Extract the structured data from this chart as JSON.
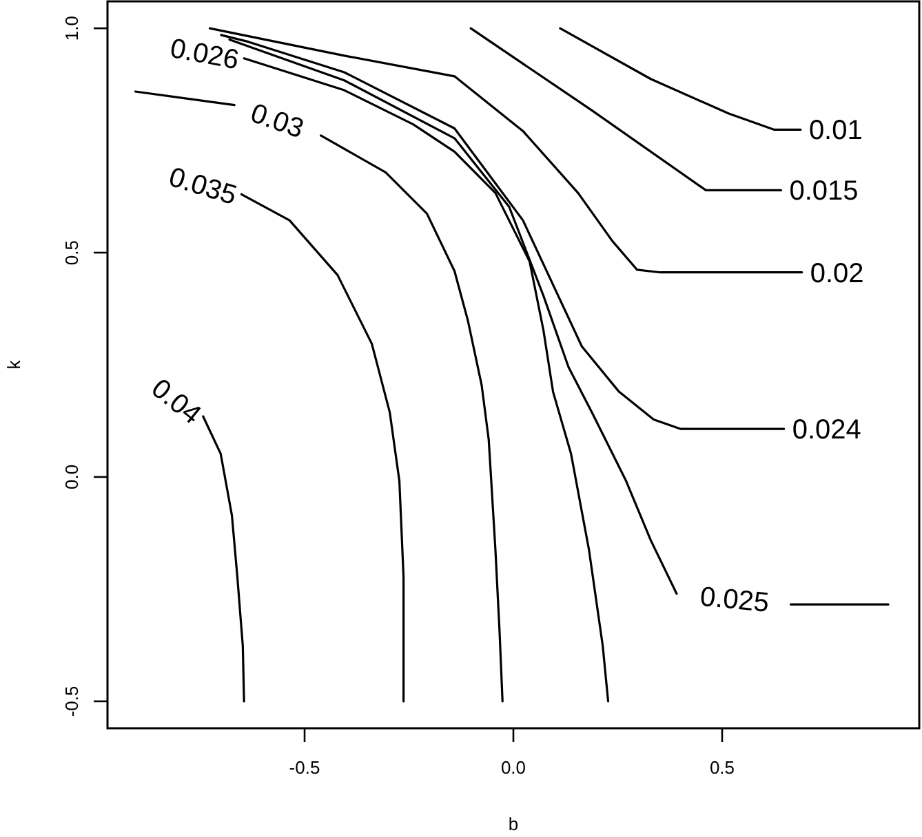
{
  "chart_data": {
    "type": "line",
    "xlabel": "b",
    "ylabel": "k",
    "xlim": [
      -0.972,
      0.972
    ],
    "ylim": [
      -0.56,
      1.06
    ],
    "xticks": [
      -0.5,
      {
        "value": 0,
        "label": "0.0"
      },
      0.5
    ],
    "yticks": [
      -0.5,
      {
        "value": 0,
        "label": "0.0"
      },
      0.5,
      {
        "value": 1,
        "label": "1.0"
      }
    ],
    "series": [
      {
        "name": "0.01",
        "color": "#000000",
        "x": [
          0.112,
          0.329,
          0.516,
          0.625,
          0.688
        ],
        "values": [
          1.0,
          0.887,
          0.81,
          0.774,
          0.774
        ]
      },
      {
        "name": "0.015",
        "color": "#000000",
        "x": [
          -0.102,
          0.188,
          0.461,
          0.641
        ],
        "values": [
          1.0,
          0.817,
          0.639,
          0.639
        ]
      },
      {
        "name": "0.02",
        "color": "#000000",
        "x": [
          -0.727,
          -0.405,
          -0.141,
          0.023,
          0.155,
          0.237,
          0.296,
          0.352,
          0.691
        ],
        "values": [
          1.0,
          0.939,
          0.893,
          0.771,
          0.633,
          0.526,
          0.462,
          0.456,
          0.456
        ]
      },
      {
        "name": "0.024",
        "color": "#000000",
        "x": [
          -0.7,
          -0.635,
          -0.405,
          -0.141,
          0.023,
          0.164,
          0.253,
          0.336,
          0.401,
          0.648
        ],
        "values": [
          0.985,
          0.97,
          0.902,
          0.777,
          0.572,
          0.291,
          0.19,
          0.128,
          0.107,
          0.107
        ]
      },
      {
        "name": "0.025",
        "color": "#000000",
        "x": [
          -0.68,
          -0.635,
          -0.405,
          -0.141,
          -0.01,
          0.072,
          0.132,
          0.188,
          0.27,
          0.329,
          0.391,
          0.53,
          0.664,
          0.898
        ],
        "values": [
          0.975,
          0.96,
          0.884,
          0.755,
          0.602,
          0.404,
          0.245,
          0.144,
          -0.009,
          -0.141,
          -0.26,
          null,
          -0.284,
          -0.284
        ]
      },
      {
        "name": "0.026",
        "color": "#000000",
        "x": [
          -0.645,
          -0.405,
          -0.24,
          -0.141,
          -0.043,
          0.039,
          0.072,
          0.095,
          0.138,
          0.181,
          0.214,
          0.227
        ],
        "values": [
          0.933,
          0.862,
          0.786,
          0.725,
          0.633,
          0.48,
          0.327,
          0.19,
          0.052,
          -0.162,
          -0.376,
          -0.5
        ]
      },
      {
        "name": "0.03",
        "color": "#000000",
        "x": [
          -0.905,
          -0.668,
          -0.565,
          -0.461,
          -0.306,
          -0.207,
          -0.141,
          -0.109,
          -0.076,
          -0.059,
          -0.043,
          -0.033,
          -0.026
        ],
        "values": [
          0.859,
          0.829,
          null,
          0.761,
          0.679,
          0.587,
          0.459,
          0.349,
          0.205,
          0.083,
          -0.162,
          -0.346,
          -0.5
        ]
      },
      {
        "name": "0.035",
        "color": "#000000",
        "x": [
          -0.651,
          -0.536,
          -0.421,
          -0.339,
          -0.296,
          -0.273,
          -0.263,
          -0.263
        ],
        "values": [
          0.63,
          0.572,
          0.45,
          0.297,
          0.144,
          -0.009,
          -0.223,
          -0.5
        ]
      },
      {
        "name": "0.04",
        "color": "#000000",
        "x": [
          -0.743,
          -0.701,
          -0.674,
          -0.661,
          -0.648,
          -0.645
        ],
        "values": [
          0.135,
          0.052,
          -0.086,
          -0.223,
          -0.376,
          -0.5
        ]
      }
    ]
  }
}
